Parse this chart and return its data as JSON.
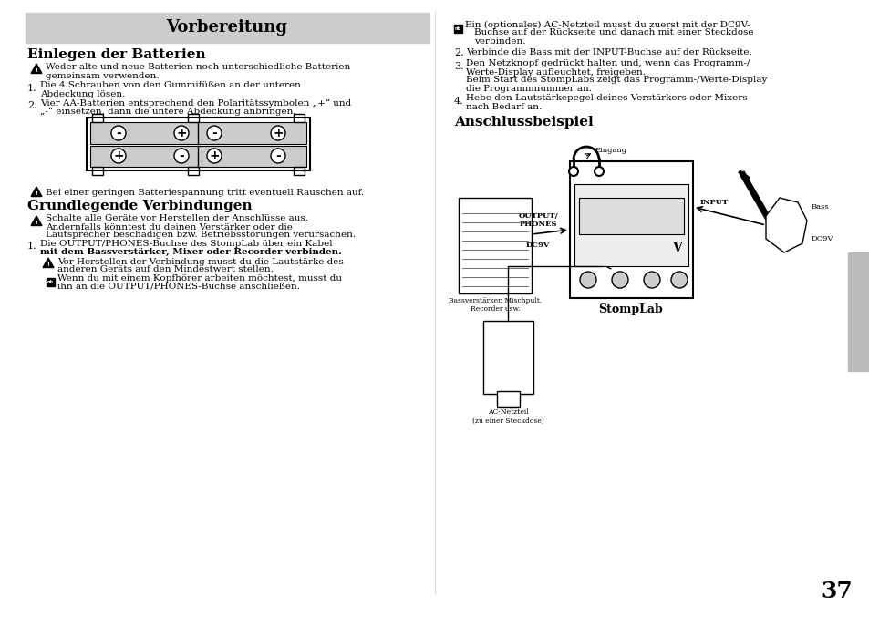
{
  "bg_color": "#ffffff",
  "title": "Vorbereitung",
  "title_bg": "#cccccc",
  "section1": "Einlegen der Batterien",
  "section2": "Grundlegende Verbindungen",
  "section3": "Anschlussbeispiel",
  "text_color": "#000000",
  "page_number": "37",
  "tab_color": "#aaaaaa",
  "warn1": "Weder alte und neue Batterien noch unterschiedliche Batterien",
  "warn1b": "gemeinsam verwenden.",
  "item1a": "Die 4 Schrauben von den Gummifüßen an der unteren",
  "item1b": "Abdeckung lösen.",
  "item2a": "Vier AA-Batterien entsprechend den Polaritätssymbolen „+“ und",
  "item2b": "„-“ einsetzen, dann die untere Abdeckung anbringen.",
  "warn2": "Bei einer geringen Batteriespannung tritt eventuell Rauschen auf.",
  "warn3a": "Schalte alle Geräte vor Herstellen der Anschlüsse aus.",
  "warn3b": "Andernfalls könntest du deinen Verstärker oder die",
  "warn3c": "Lautsprecher beschädigen bzw. Betriebsstörungen verursachen.",
  "item3a": "Die OUTPUT/PHONES-Buchse des StompLab über ein Kabel",
  "item3b": "mit dem Bassverstärker, Mixer oder Recorder verbinden.",
  "warn4a": "Vor Herstellen der Verbindung musst du die Lautstärke des",
  "warn4b": "anderen Geräts auf den Mindestwert stellen.",
  "note1a": "Wenn du mit einem Kopfhörer arbeiten möchtest, musst du",
  "note1b": "ihn an die OUTPUT/PHONES-Buchse anschließen.",
  "rnote1a": "Ein (optionales) AC-Netzteil musst du zuerst mit der DC9V-",
  "rnote1b": "Buchse auf der Rückseite und danach mit einer Steckdose",
  "rnote1c": "verbinden.",
  "ritem2": "Verbinde die Bass mit der INPUT-Buchse auf der Rückseite.",
  "ritem3a": "Den Netzknopf gedrückt halten und, wenn das Programm-/",
  "ritem3b": "Werte-Display aufleuchtet, freigeben.",
  "ritem3c": "Beim Start des StompLabs zeigt das Programm-/Werte-Display",
  "ritem3d": "die Programmnummer an.",
  "ritem4a": "Hebe den Lautstärkepegel deines Verstärkers oder Mixers",
  "ritem4b": "nach Bedarf an.",
  "diag_amp": "Bassverstärker, Mischpult,",
  "diag_amp2": "Recorder usw.",
  "diag_stomp": "StompLab",
  "diag_bass": "Bass",
  "diag_dc9v": "DC9V",
  "diag_input": "INPUT",
  "diag_output": "OUTPUT/",
  "diag_phones": "PHONES",
  "diag_dc9v2": "DC9V",
  "diag_eingang": "Eingang",
  "diag_ac": "AC-Netzteil",
  "diag_ac2": "(zu einer Steckdose)"
}
